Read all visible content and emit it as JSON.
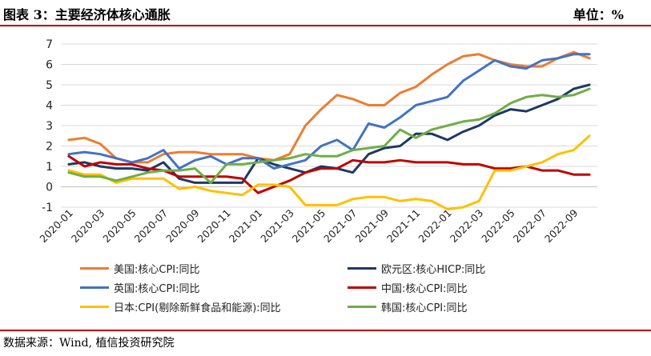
{
  "header": {
    "title": "图表 3：主要经济体核心通胀",
    "unit": "单位：%"
  },
  "footer": {
    "source": "数据来源：Wind, 植信投资研究院"
  },
  "chart_data": {
    "type": "line",
    "ylim": [
      -1,
      7
    ],
    "yticks": [
      -1,
      0,
      1,
      2,
      3,
      4,
      5,
      6,
      7
    ],
    "grid": "horizontal",
    "legend_position": "bottom",
    "x": [
      "2020-01",
      "2020-02",
      "2020-03",
      "2020-04",
      "2020-05",
      "2020-06",
      "2020-07",
      "2020-08",
      "2020-09",
      "2020-10",
      "2020-11",
      "2020-12",
      "2021-01",
      "2021-02",
      "2021-03",
      "2021-04",
      "2021-05",
      "2021-06",
      "2021-07",
      "2021-08",
      "2021-09",
      "2021-10",
      "2021-11",
      "2021-12",
      "2022-01",
      "2022-02",
      "2022-03",
      "2022-04",
      "2022-05",
      "2022-06",
      "2022-07",
      "2022-08",
      "2022-09",
      "2022-10"
    ],
    "xtick_labels": [
      "2020-01",
      "2020-03",
      "2020-05",
      "2020-07",
      "2020-09",
      "2020-11",
      "2021-01",
      "2021-03",
      "2021-05",
      "2021-07",
      "2021-09",
      "2021-11",
      "2022-01",
      "2022-03",
      "2022-05",
      "2022-07",
      "2022-09"
    ],
    "series": [
      {
        "name": "美国:核心CPI:同比",
        "color": "#ed7d31",
        "values": [
          2.3,
          2.4,
          2.1,
          1.4,
          1.2,
          1.2,
          1.6,
          1.7,
          1.7,
          1.6,
          1.6,
          1.6,
          1.4,
          1.3,
          1.6,
          3.0,
          3.8,
          4.5,
          4.3,
          4.0,
          4.0,
          4.6,
          4.9,
          5.5,
          6.0,
          6.4,
          6.5,
          6.2,
          6.0,
          5.9,
          5.9,
          6.3,
          6.6,
          6.3
        ]
      },
      {
        "name": "欧元区:核心HICP:同比",
        "color": "#1f3864",
        "values": [
          1.1,
          1.2,
          1.0,
          0.9,
          0.9,
          0.8,
          1.2,
          0.4,
          0.2,
          0.2,
          0.2,
          0.2,
          1.4,
          1.1,
          0.9,
          0.7,
          1.0,
          0.9,
          0.7,
          1.6,
          1.9,
          2.0,
          2.6,
          2.6,
          2.3,
          2.7,
          3.0,
          3.5,
          3.8,
          3.7,
          4.0,
          4.3,
          4.8,
          5.0
        ]
      },
      {
        "name": "英国:核心CPI:同比",
        "color": "#4472c4",
        "values": [
          1.6,
          1.7,
          1.6,
          1.4,
          1.2,
          1.4,
          1.8,
          0.9,
          1.3,
          1.5,
          1.1,
          1.4,
          1.4,
          0.9,
          1.1,
          1.3,
          2.0,
          2.3,
          1.8,
          3.1,
          2.9,
          3.4,
          4.0,
          4.2,
          4.4,
          5.2,
          5.7,
          6.2,
          5.9,
          5.8,
          6.2,
          6.3,
          6.5,
          6.5
        ]
      },
      {
        "name": "中国:核心CPI:同比",
        "color": "#c00000",
        "values": [
          1.5,
          1.0,
          1.2,
          1.1,
          1.1,
          0.9,
          0.8,
          0.5,
          0.5,
          0.5,
          0.5,
          0.4,
          -0.3,
          0.0,
          0.3,
          0.7,
          0.9,
          0.9,
          1.3,
          1.2,
          1.2,
          1.3,
          1.2,
          1.2,
          1.2,
          1.1,
          1.1,
          0.9,
          0.9,
          1.0,
          0.8,
          0.8,
          0.6,
          0.6
        ]
      },
      {
        "name": "日本:CPI(剔除新鲜食品和能源):同比",
        "color": "#ffc000",
        "values": [
          0.8,
          0.6,
          0.6,
          0.2,
          0.4,
          0.4,
          0.4,
          -0.1,
          0.0,
          -0.2,
          -0.3,
          -0.4,
          0.1,
          0.1,
          0.0,
          -0.9,
          -0.9,
          -0.9,
          -0.6,
          -0.5,
          -0.5,
          -0.7,
          -0.6,
          -0.7,
          -1.1,
          -1.0,
          -0.7,
          0.8,
          0.8,
          1.0,
          1.2,
          1.6,
          1.8,
          2.5
        ]
      },
      {
        "name": "韩国:核心CPI:同比",
        "color": "#70ad47",
        "values": [
          0.7,
          0.5,
          0.5,
          0.3,
          0.5,
          0.7,
          0.8,
          0.8,
          0.9,
          0.2,
          1.1,
          1.1,
          1.2,
          1.3,
          1.4,
          1.6,
          1.5,
          1.5,
          1.8,
          1.9,
          2.0,
          2.8,
          2.4,
          2.8,
          3.0,
          3.2,
          3.3,
          3.6,
          4.1,
          4.4,
          4.5,
          4.4,
          4.5,
          4.8
        ]
      }
    ]
  }
}
